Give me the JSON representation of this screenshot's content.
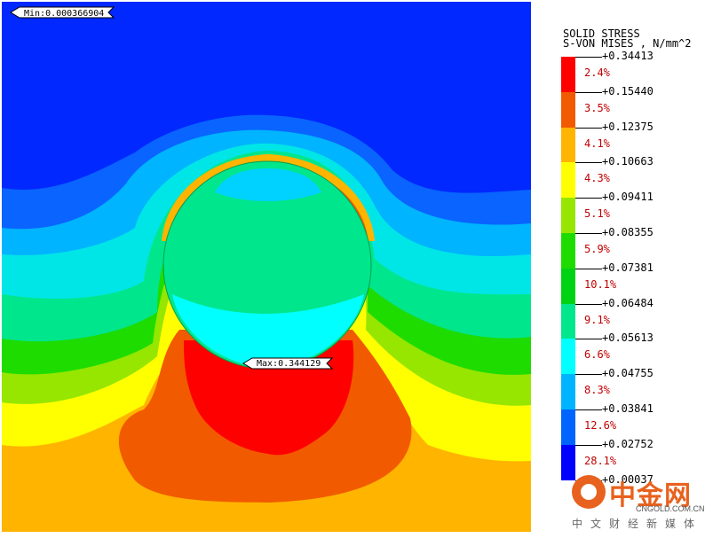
{
  "legend": {
    "title_line1": "SOLID STRESS",
    "title_line2": "S-VON MISES , N/mm^2",
    "ticks": [
      "+0.34413",
      "+0.15440",
      "+0.12375",
      "+0.10663",
      "+0.09411",
      "+0.08355",
      "+0.07381",
      "+0.06484",
      "+0.05613",
      "+0.04755",
      "+0.03841",
      "+0.02752",
      "+0.00037"
    ],
    "bands": [
      {
        "color": "#ff0000",
        "pct": "2.4%"
      },
      {
        "color": "#f25a00",
        "pct": "3.5%"
      },
      {
        "color": "#ffb400",
        "pct": "4.1%"
      },
      {
        "color": "#ffff00",
        "pct": "4.3%"
      },
      {
        "color": "#96e600",
        "pct": "5.1%"
      },
      {
        "color": "#1edc00",
        "pct": "5.9%"
      },
      {
        "color": "#00d214",
        "pct": "10.1%"
      },
      {
        "color": "#00e68c",
        "pct": "9.1%"
      },
      {
        "color": "#00ffff",
        "pct": "6.6%"
      },
      {
        "color": "#00b4ff",
        "pct": "8.3%"
      },
      {
        "color": "#0064ff",
        "pct": "12.6%"
      },
      {
        "color": "#0000ff",
        "pct": "28.1%"
      }
    ]
  },
  "plot": {
    "min_label": "Min:0.000366904",
    "max_label": "Max:0.344129"
  },
  "watermark": {
    "brand_cn": "中金网",
    "url": "CNGOLD.COM.CN",
    "subtitle": "中文财经新媒体"
  }
}
